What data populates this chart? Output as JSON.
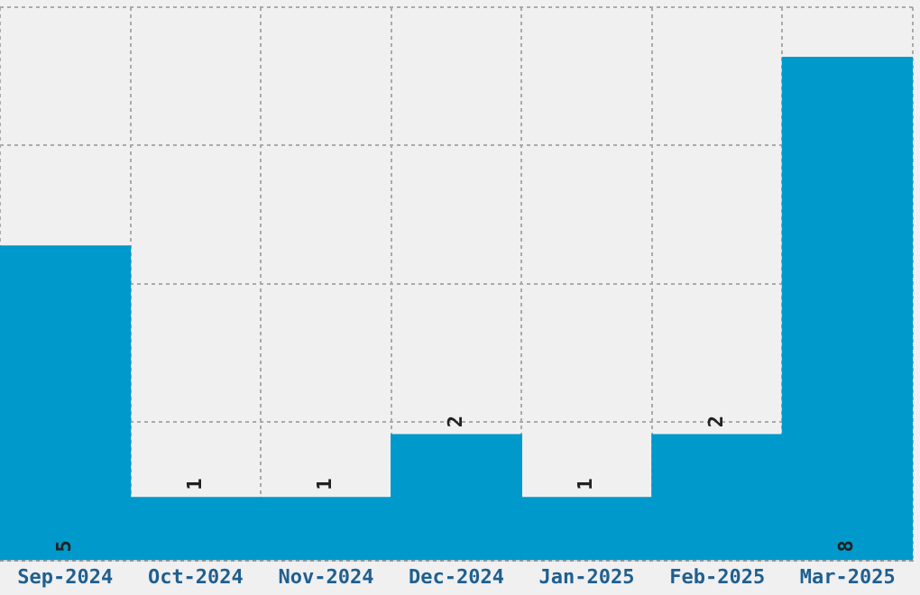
{
  "chart_data": {
    "type": "bar",
    "categories": [
      "Sep-2024",
      "Oct-2024",
      "Nov-2024",
      "Dec-2024",
      "Jan-2025",
      "Feb-2025",
      "Mar-2025"
    ],
    "values": [
      5,
      1,
      1,
      2,
      1,
      2,
      8
    ],
    "color": "#0099cc",
    "ylim": [
      0,
      8.8
    ],
    "yticks": [
      {
        "value": 0,
        "label": null
      },
      {
        "value": 2.2,
        "label": null
      },
      {
        "value": 4.4,
        "label": null
      },
      {
        "value": 6.6,
        "label": null
      },
      {
        "value": 8.8,
        "label": null
      }
    ],
    "grid": true,
    "tick_labels": "x",
    "data_labels": true
  }
}
